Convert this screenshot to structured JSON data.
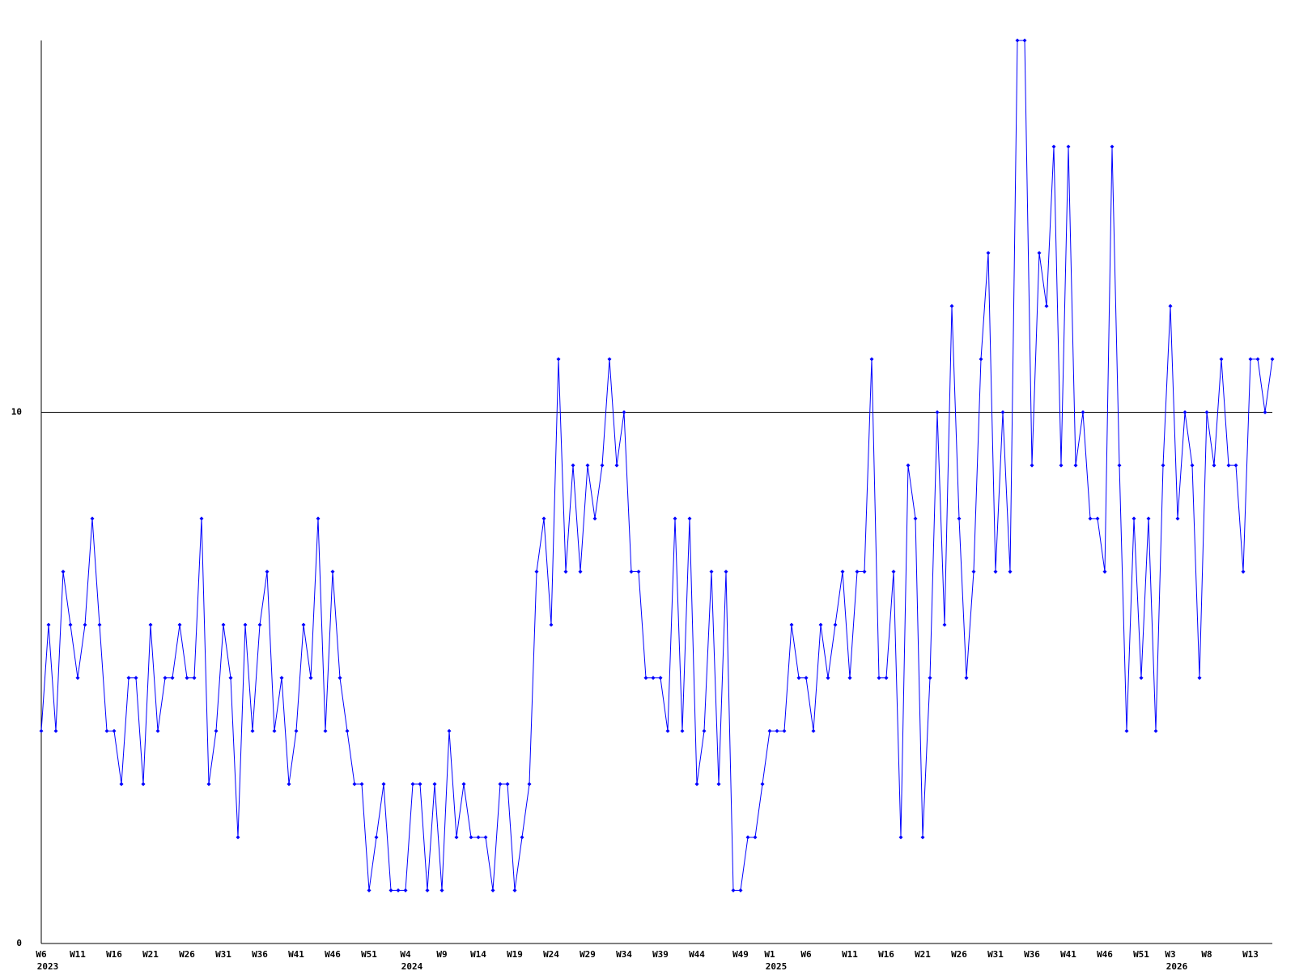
{
  "chart_data": {
    "type": "line",
    "categories": [
      "W6",
      null,
      null,
      null,
      null,
      "W11",
      null,
      null,
      null,
      null,
      "W16",
      null,
      null,
      null,
      null,
      "W21",
      null,
      null,
      null,
      null,
      "W26",
      null,
      null,
      null,
      null,
      "W31",
      null,
      null,
      null,
      null,
      "W36",
      null,
      null,
      null,
      null,
      "W41",
      null,
      null,
      null,
      null,
      "W46",
      null,
      null,
      null,
      null,
      "W51",
      null,
      null,
      null,
      null,
      "W4",
      null,
      null,
      null,
      null,
      "W9",
      null,
      null,
      null,
      null,
      "W14",
      null,
      null,
      null,
      null,
      "W19",
      null,
      null,
      null,
      null,
      "W24",
      null,
      null,
      null,
      null,
      "W29",
      null,
      null,
      null,
      null,
      "W34",
      null,
      null,
      null,
      null,
      "W39",
      null,
      null,
      null,
      null,
      "W44",
      null,
      null,
      null,
      null,
      null,
      "W49",
      null,
      null,
      null,
      "W1",
      null,
      null,
      null,
      null,
      "W6",
      null,
      null,
      null,
      null,
      null,
      "W11",
      null,
      null,
      null,
      null,
      "W16",
      null,
      null,
      null,
      null,
      "W21",
      null,
      null,
      null,
      null,
      "W26",
      null,
      null,
      null,
      null,
      "W31",
      null,
      null,
      null,
      null,
      "W36",
      null,
      null,
      null,
      null,
      "W41",
      null,
      null,
      null,
      null,
      "W46",
      null,
      null,
      null,
      null,
      "W51",
      null,
      null,
      null,
      "W3",
      null,
      null,
      null,
      null,
      "W8",
      null,
      null,
      null,
      null,
      null,
      "W13",
      null,
      null,
      null
    ],
    "year_labels": [
      "2023",
      null,
      null,
      null,
      null,
      null,
      null,
      null,
      null,
      null,
      null,
      null,
      null,
      null,
      null,
      null,
      null,
      null,
      null,
      null,
      null,
      null,
      null,
      null,
      null,
      null,
      null,
      null,
      null,
      null,
      null,
      null,
      null,
      null,
      null,
      null,
      null,
      null,
      null,
      null,
      null,
      null,
      null,
      null,
      null,
      null,
      null,
      null,
      null,
      null,
      "2024",
      null,
      null,
      null,
      null,
      null,
      null,
      null,
      null,
      null,
      null,
      null,
      null,
      null,
      null,
      null,
      null,
      null,
      null,
      null,
      null,
      null,
      null,
      null,
      null,
      null,
      null,
      null,
      null,
      null,
      null,
      null,
      null,
      null,
      null,
      null,
      null,
      null,
      null,
      null,
      null,
      null,
      null,
      null,
      null,
      null,
      null,
      null,
      null,
      null,
      "2025",
      null,
      null,
      null,
      null,
      null,
      null,
      null,
      null,
      null,
      null,
      null,
      null,
      null,
      null,
      null,
      null,
      null,
      null,
      null,
      null,
      null,
      null,
      null,
      null,
      null,
      null,
      null,
      null,
      null,
      null,
      null,
      null,
      null,
      null,
      null,
      null,
      null,
      null,
      null,
      null,
      null,
      null,
      null,
      null,
      null,
      null,
      null,
      null,
      null,
      null,
      null,
      null,
      null,
      null,
      "2026",
      null,
      null,
      null,
      null,
      null,
      null,
      null,
      null,
      null,
      null,
      null,
      null,
      null,
      null
    ],
    "series": [
      {
        "color": "#0000ff",
        "values": [
          4,
          6,
          4,
          7,
          6,
          5,
          6,
          8,
          6,
          4,
          4,
          3,
          5,
          5,
          3,
          6,
          4,
          5,
          5,
          6,
          5,
          5,
          8,
          3,
          4,
          6,
          5,
          2,
          6,
          4,
          6,
          7,
          4,
          5,
          3,
          4,
          6,
          5,
          8,
          4,
          7,
          5,
          4,
          3,
          3,
          1,
          2,
          3,
          1,
          1,
          1,
          3,
          3,
          1,
          3,
          1,
          4,
          2,
          3,
          2,
          2,
          2,
          1,
          3,
          3,
          1,
          2,
          3,
          7,
          8,
          6,
          11,
          7,
          9,
          7,
          9,
          8,
          9,
          11,
          9,
          10,
          7,
          7,
          5,
          5,
          5,
          4,
          8,
          4,
          8,
          3,
          4,
          7,
          3,
          7,
          1,
          1,
          2,
          2,
          3,
          4,
          4,
          4,
          6,
          5,
          5,
          4,
          6,
          5,
          6,
          7,
          5,
          7,
          7,
          11,
          5,
          5,
          7,
          2,
          9,
          8,
          2,
          5,
          10,
          6,
          12,
          8,
          5,
          7,
          11,
          13,
          7,
          10,
          7,
          17,
          17,
          9,
          13,
          12,
          15,
          9,
          15,
          9,
          10,
          8,
          8,
          7,
          15,
          9,
          4,
          8,
          5,
          8,
          4,
          9,
          12,
          8,
          10,
          9,
          5,
          10,
          9,
          11,
          9,
          9,
          7,
          11,
          11,
          10,
          11
        ]
      }
    ],
    "ylim": [
      0,
      17
    ],
    "yticks": [
      0,
      10
    ],
    "grid": true
  }
}
